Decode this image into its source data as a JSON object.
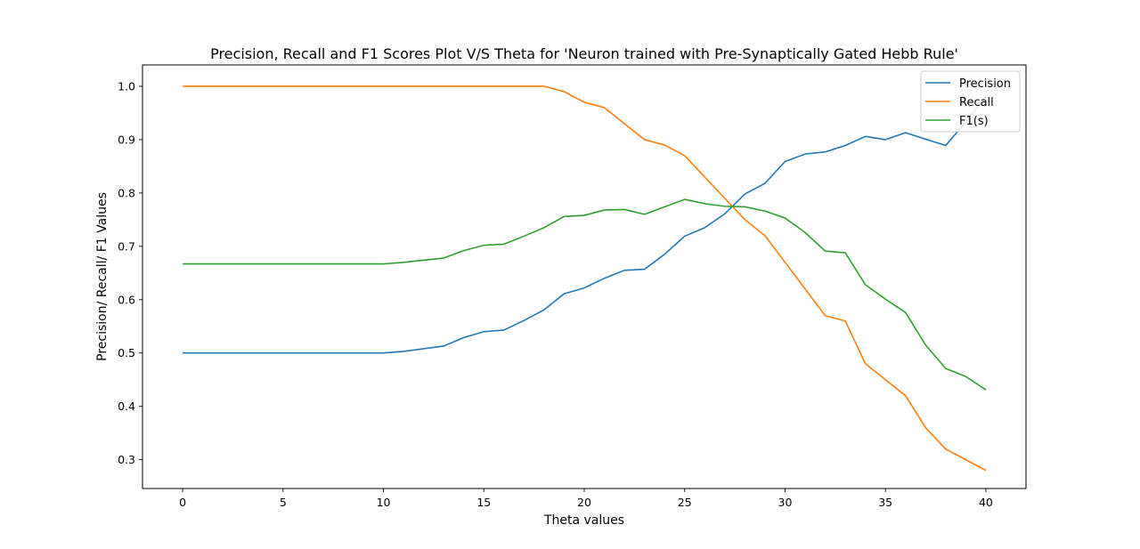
{
  "chart_data": {
    "type": "line",
    "title": "Precision, Recall and F1 Scores Plot V/S Theta for 'Neuron trained with Pre-Synaptically Gated Hebb Rule'",
    "xlabel": "Theta values",
    "ylabel": "Precision/ Recall/ F1 Values",
    "xlim": [
      -2,
      42
    ],
    "ylim": [
      0.246,
      1.04
    ],
    "xticks": [
      0,
      5,
      10,
      15,
      20,
      25,
      30,
      35,
      40
    ],
    "yticks": [
      0.3,
      0.4,
      0.5,
      0.6,
      0.7,
      0.8,
      0.9,
      1.0
    ],
    "ytick_labels": [
      "0.3",
      "0.4",
      "0.5",
      "0.6",
      "0.7",
      "0.8",
      "0.9",
      "1.0"
    ],
    "grid": false,
    "legend_position": "top-right",
    "x": [
      0,
      1,
      2,
      3,
      4,
      5,
      6,
      7,
      8,
      9,
      10,
      11,
      12,
      13,
      14,
      15,
      16,
      17,
      18,
      19,
      20,
      21,
      22,
      23,
      24,
      25,
      26,
      27,
      28,
      29,
      30,
      31,
      32,
      33,
      34,
      35,
      36,
      37,
      38,
      39,
      40
    ],
    "series": [
      {
        "name": "Precision",
        "color": "#1f77b4",
        "values": [
          0.5,
          0.5,
          0.5,
          0.5,
          0.5,
          0.5,
          0.5,
          0.5,
          0.5,
          0.5,
          0.5,
          0.503,
          0.508,
          0.513,
          0.529,
          0.54,
          0.543,
          0.561,
          0.581,
          0.611,
          0.622,
          0.64,
          0.655,
          0.657,
          0.685,
          0.719,
          0.735,
          0.761,
          0.798,
          0.818,
          0.859,
          0.873,
          0.877,
          0.889,
          0.906,
          0.9,
          0.913,
          0.901,
          0.889,
          0.933,
          0.98
        ]
      },
      {
        "name": "Recall",
        "color": "#ff7f0e",
        "values": [
          1,
          1,
          1,
          1,
          1,
          1,
          1,
          1,
          1,
          1,
          1,
          1,
          1,
          1,
          1,
          1,
          1,
          1,
          1,
          0.99,
          0.97,
          0.96,
          0.93,
          0.9,
          0.89,
          0.87,
          0.83,
          0.79,
          0.75,
          0.72,
          0.67,
          0.62,
          0.57,
          0.56,
          0.48,
          0.45,
          0.42,
          0.36,
          0.32,
          0.3,
          0.28
        ]
      },
      {
        "name": "F1(s)",
        "color": "#2ca02c",
        "values": [
          0.667,
          0.667,
          0.667,
          0.667,
          0.667,
          0.667,
          0.667,
          0.667,
          0.667,
          0.667,
          0.667,
          0.67,
          0.674,
          0.678,
          0.692,
          0.702,
          0.704,
          0.719,
          0.735,
          0.756,
          0.758,
          0.768,
          0.769,
          0.76,
          0.774,
          0.788,
          0.78,
          0.775,
          0.774,
          0.766,
          0.753,
          0.726,
          0.691,
          0.688,
          0.628,
          0.601,
          0.576,
          0.515,
          0.471,
          0.456,
          0.431
        ]
      }
    ]
  }
}
